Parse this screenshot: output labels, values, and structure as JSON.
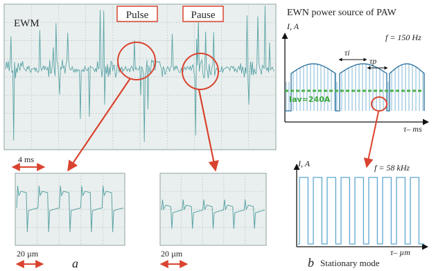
{
  "panel_a": {
    "main_label": "EWM",
    "pulse_label": "Pulse",
    "pause_label": "Pause",
    "time_scale": "4 ms",
    "zoom_scale_left": "20 µm",
    "zoom_scale_right": "20 µm",
    "caption": "a"
  },
  "panel_b": {
    "title": "EWN power source of PAW",
    "top_y_axis": "I, A",
    "top_freq": "f = 150 Hz",
    "tau_i": "τi",
    "tau_p": "τp",
    "avg_current": "Iav=240A",
    "top_x_axis": "τ– ms",
    "bottom_y_axis": "I, A",
    "bottom_freq": "f = 58 kHz",
    "bottom_x_axis": "τ– µm",
    "caption": "b",
    "mode_label": "Stationary mode"
  },
  "colors": {
    "trace": "#5aa3a6",
    "scope_bg": "#e9efee",
    "grid": "#b9c6c4",
    "callout": "#d9432f",
    "pulse_fill": "#7fb6d6",
    "avg_line": "#4ab04a"
  },
  "chart_data": [
    {
      "type": "line",
      "name": "top-waveform",
      "x_axis_label": "τ– ms",
      "y_axis_label": "I, A",
      "frequency": "f = 150 Hz",
      "average_current": "Iav=240A",
      "pulses": 3
    },
    {
      "type": "line",
      "name": "bottom-square-wave",
      "x_axis_label": "τ– µm",
      "y_axis_label": "I, A",
      "frequency": "f = 58 kHz",
      "pulses": 9
    }
  ]
}
